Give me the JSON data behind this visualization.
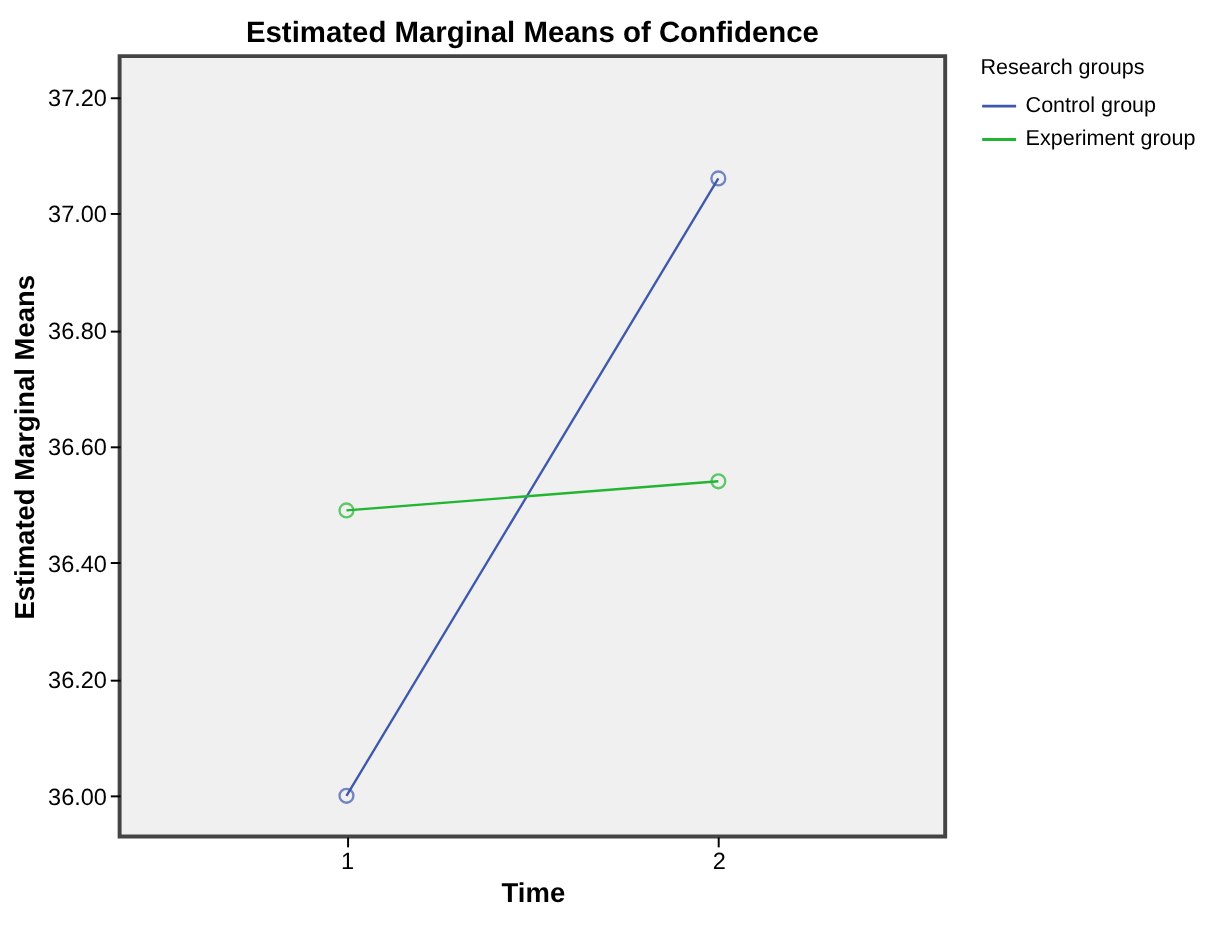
{
  "chart_data": {
    "type": "line",
    "title": "Estimated Marginal Means of Confidence",
    "xlabel": "Time",
    "ylabel": "Estimated Marginal Means",
    "legend_title": "Research groups",
    "categories": [
      "1",
      "2"
    ],
    "series": [
      {
        "name": "Control group",
        "color": "#3e58ac",
        "values": [
          36.0,
          37.06
        ]
      },
      {
        "name": "Experiment group",
        "color": "#22b532",
        "values": [
          36.49,
          36.54
        ]
      }
    ],
    "ylim": [
      35.93,
      37.27
    ],
    "yticks": [
      {
        "value": 36.0,
        "label": "36.00"
      },
      {
        "value": 36.2,
        "label": "36.20"
      },
      {
        "value": 36.4,
        "label": "36.40"
      },
      {
        "value": 36.6,
        "label": "36.60"
      },
      {
        "value": 36.8,
        "label": "36.80"
      },
      {
        "value": 37.0,
        "label": "37.00"
      },
      {
        "value": 37.2,
        "label": "37.20"
      }
    ],
    "grid": false,
    "legend": "top right",
    "marker": "circle",
    "line_style": "solid"
  }
}
